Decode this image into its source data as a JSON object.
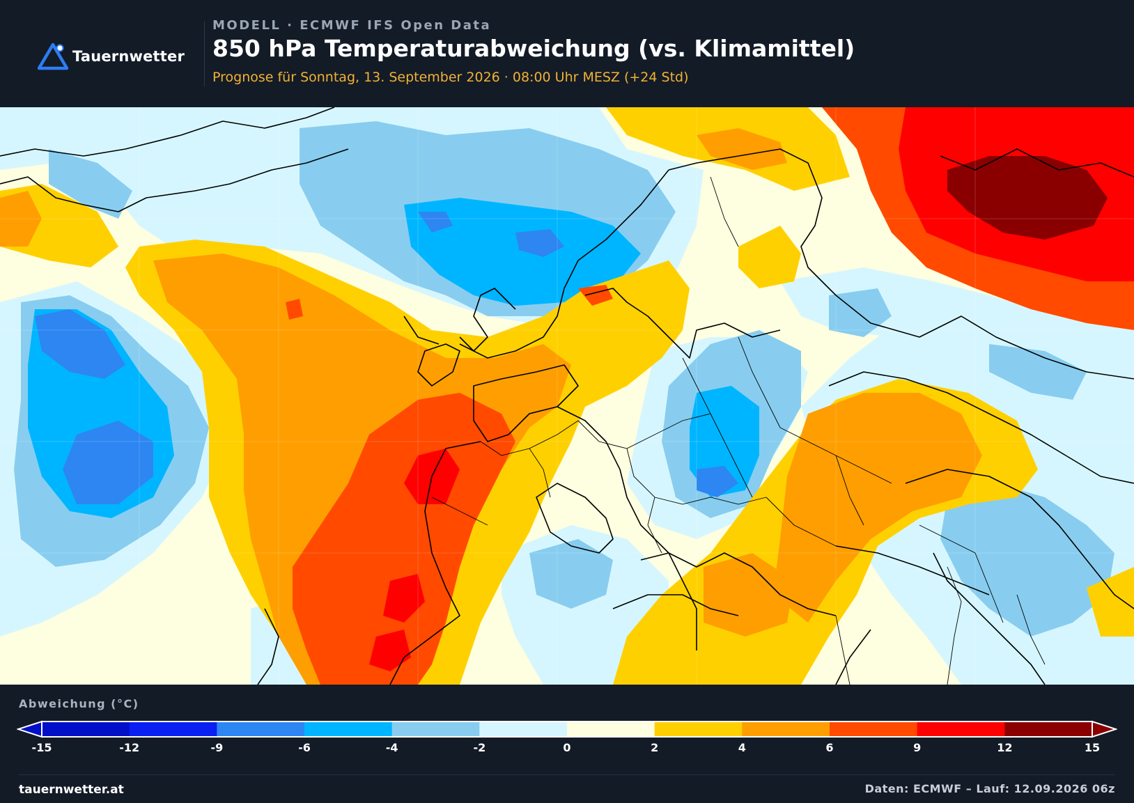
{
  "header": {
    "brand": "Tauernwetter",
    "model_line": "MODELL · ECMWF IFS Open Data",
    "title": "850 hPa Temperaturabweichung (vs. Klimamittel)",
    "subtitle": "Prognose für Sonntag, 13. September 2026 · 08:00 Uhr MESZ  (+24 Std)",
    "logo_icon": "mountain-triangle-icon"
  },
  "legend": {
    "title": "Abweichung (°C)",
    "ticks": [
      "-15",
      "-12",
      "-9",
      "-6",
      "-4",
      "-2",
      "0",
      "2",
      "4",
      "6",
      "9",
      "12",
      "15"
    ],
    "colors": [
      "#0010c8",
      "#0a1ff2",
      "#2d86f2",
      "#00b5ff",
      "#88cdef",
      "#d6f6ff",
      "#fefee0",
      "#ffd000",
      "#ff9e00",
      "#ff4a00",
      "#ff0000",
      "#8a0000"
    ]
  },
  "footer": {
    "site": "tauernwetter.at",
    "source": "Daten: ECMWF – Lauf: 12.09.2026 06z"
  }
}
